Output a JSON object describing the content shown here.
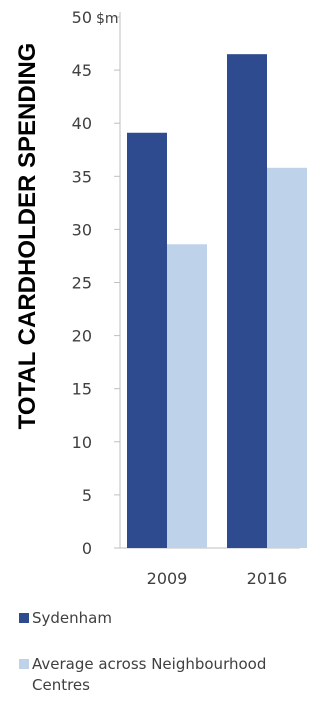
{
  "chart_data": {
    "type": "bar",
    "title": "",
    "ylabel": "TOTAL CARDHOLDER SPENDING",
    "yunit": "$m",
    "xlabel": "",
    "categories": [
      "2009",
      "2016"
    ],
    "series": [
      {
        "name": "Sydenham",
        "values": [
          39.1,
          46.5
        ],
        "color": "#2f4b8f"
      },
      {
        "name": "Average across Neighbourhood Centres",
        "values": [
          28.6,
          35.8
        ],
        "color": "#bed3ea"
      }
    ],
    "ylim": [
      0,
      50
    ],
    "yticks": [
      0,
      5,
      10,
      15,
      20,
      25,
      30,
      35,
      40,
      45,
      50
    ],
    "grid": false,
    "legend_position": "bottom"
  },
  "legend": {
    "items": [
      {
        "label": "Sydenham",
        "color": "#2f4b8f"
      },
      {
        "label": "Average across Neighbourhood Centres",
        "color": "#bed3ea"
      }
    ]
  }
}
